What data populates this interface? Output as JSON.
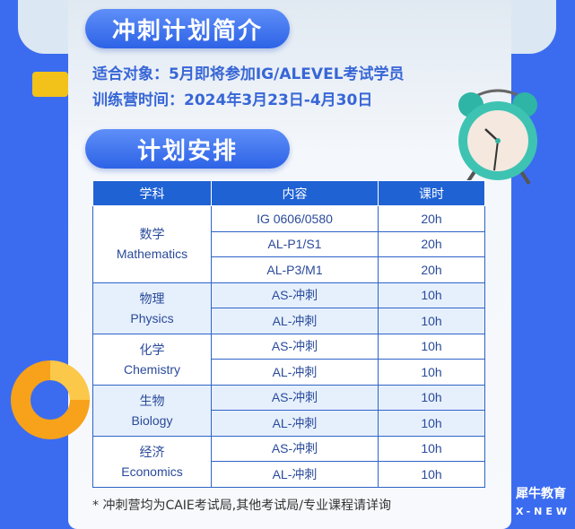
{
  "intro": {
    "title": "冲刺计划简介",
    "target": "适合对象：5月即将参加IG/ALEVEL考试学员",
    "time": "训练营时间：2024年3月23日-4月30日"
  },
  "plan": {
    "title": "计划安排"
  },
  "table": {
    "headers": [
      "学科",
      "内容",
      "课时"
    ],
    "subjects": [
      {
        "cn": "数学",
        "en": "Mathematics",
        "rows": [
          [
            "IG 0606/0580",
            "20h"
          ],
          [
            "AL-P1/S1",
            "20h"
          ],
          [
            "AL-P3/M1",
            "20h"
          ]
        ]
      },
      {
        "cn": "物理",
        "en": "Physics",
        "rows": [
          [
            "AS-冲刺",
            "10h"
          ],
          [
            "AL-冲刺",
            "10h"
          ]
        ]
      },
      {
        "cn": "化学",
        "en": "Chemistry",
        "rows": [
          [
            "AS-冲刺",
            "10h"
          ],
          [
            "AL-冲刺",
            "10h"
          ]
        ]
      },
      {
        "cn": "生物",
        "en": "Biology",
        "rows": [
          [
            "AS-冲刺",
            "10h"
          ],
          [
            "AL-冲刺",
            "10h"
          ]
        ]
      },
      {
        "cn": "经济",
        "en": "Economics",
        "rows": [
          [
            "AS-冲刺",
            "10h"
          ],
          [
            "AL-冲刺",
            "10h"
          ]
        ]
      }
    ]
  },
  "note": "* 冲刺营均为CAIE考试局,其他考试局/专业课程请详询",
  "logo": {
    "cn": "犀牛教育",
    "en": "X-NEW"
  },
  "colors": {
    "background": "#3b6cf0",
    "header": "#1f62d4",
    "accent": "#3766d6"
  }
}
